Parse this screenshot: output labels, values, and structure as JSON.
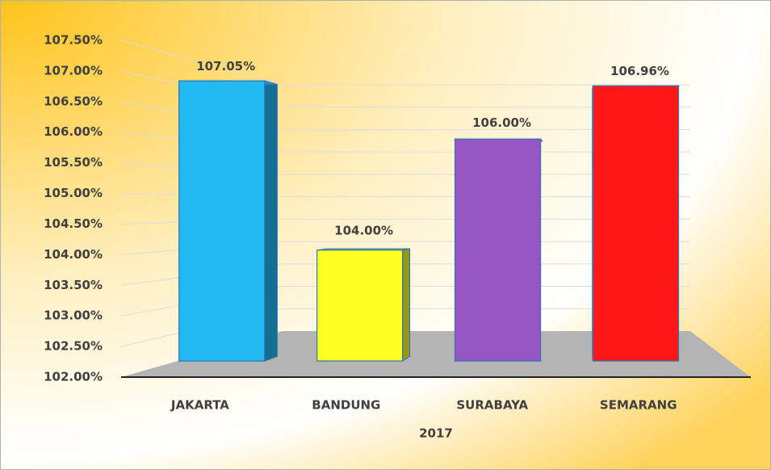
{
  "chart_data": {
    "type": "bar3d",
    "categories": [
      "JAKARTA",
      "BANDUNG",
      "SURABAYA",
      "SEMARANG"
    ],
    "values": [
      107.05,
      104,
      106,
      106.96
    ],
    "value_labels": [
      "107.05%",
      "104.00%",
      "106.00%",
      "106.96%"
    ],
    "colors": [
      "#22b8f0",
      "#ffff22",
      "#9656c4",
      "#ff1616"
    ],
    "x_label": "2017",
    "ylim": [
      102,
      107.5
    ],
    "yticks": [
      {
        "value": 102,
        "label": "102.00%"
      },
      {
        "value": 102.5,
        "label": "102.50%"
      },
      {
        "value": 103,
        "label": "103.00%"
      },
      {
        "value": 103.5,
        "label": "103.50%"
      },
      {
        "value": 104,
        "label": "104.00%"
      },
      {
        "value": 104.5,
        "label": "104.50%"
      },
      {
        "value": 105,
        "label": "105.00%"
      },
      {
        "value": 105.5,
        "label": "105.50%"
      },
      {
        "value": 106,
        "label": "106.00%"
      },
      {
        "value": 106.5,
        "label": "106.50%"
      },
      {
        "value": 107,
        "label": "107.00%"
      },
      {
        "value": 107.5,
        "label": "107.50%"
      }
    ],
    "grid": true
  }
}
